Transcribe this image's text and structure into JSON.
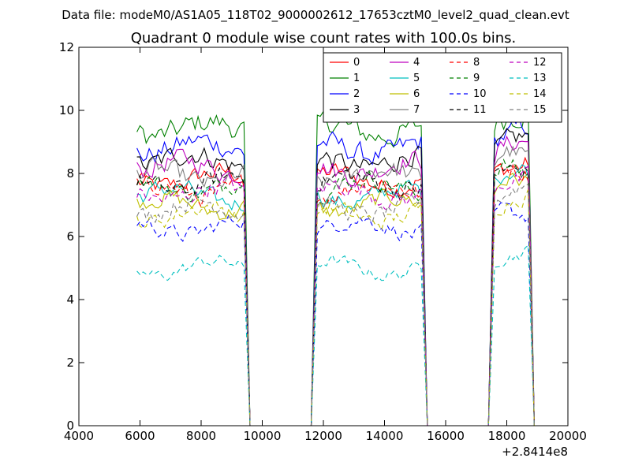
{
  "chart_data": {
    "type": "line",
    "suptitle": "Data file: modeM0/AS1A05_118T02_9000002612_17653cztM0_level2_quad_clean.evt",
    "title": "Quadrant 0 module wise count rates with 100.0s bins.",
    "xlabel": "",
    "ylabel": "",
    "x_offset_label": "+2.8414e8",
    "xlim": [
      4000,
      20000
    ],
    "ylim": [
      0,
      12
    ],
    "x_ticks": [
      4000,
      6000,
      8000,
      10000,
      12000,
      14000,
      16000,
      18000,
      20000
    ],
    "y_ticks": [
      0,
      2,
      4,
      6,
      8,
      10,
      12
    ],
    "legend_position": "top-right",
    "gaps": [
      [
        9600,
        11600
      ],
      [
        15400,
        17400
      ]
    ],
    "segments": [
      [
        5900,
        9400
      ],
      [
        11800,
        15200
      ],
      [
        17600,
        18700
      ]
    ],
    "series": [
      {
        "name": "0",
        "color": "#ff0000",
        "dash": "solid",
        "mean": 7.8
      },
      {
        "name": "1",
        "color": "#008000",
        "dash": "solid",
        "mean": 9.4
      },
      {
        "name": "2",
        "color": "#0000ff",
        "dash": "solid",
        "mean": 8.8
      },
      {
        "name": "3",
        "color": "#000000",
        "dash": "solid",
        "mean": 8.4
      },
      {
        "name": "4",
        "color": "#bf00bf",
        "dash": "solid",
        "mean": 8.2
      },
      {
        "name": "5",
        "color": "#00bfbf",
        "dash": "solid",
        "mean": 7.3
      },
      {
        "name": "6",
        "color": "#bfbf00",
        "dash": "solid",
        "mean": 7.0
      },
      {
        "name": "7",
        "color": "#808080",
        "dash": "solid",
        "mean": 7.9
      },
      {
        "name": "8",
        "color": "#ff0000",
        "dash": "dashed",
        "mean": 7.5
      },
      {
        "name": "9",
        "color": "#008000",
        "dash": "dashed",
        "mean": 7.6
      },
      {
        "name": "10",
        "color": "#0000ff",
        "dash": "dashed",
        "mean": 6.3
      },
      {
        "name": "11",
        "color": "#000000",
        "dash": "dashed",
        "mean": 7.7
      },
      {
        "name": "12",
        "color": "#bf00bf",
        "dash": "dashed",
        "mean": 7.4
      },
      {
        "name": "13",
        "color": "#00bfbf",
        "dash": "dashed",
        "mean": 5.0
      },
      {
        "name": "14",
        "color": "#bfbf00",
        "dash": "dashed",
        "mean": 6.7
      },
      {
        "name": "15",
        "color": "#808080",
        "dash": "dashed",
        "mean": 6.9
      }
    ]
  }
}
